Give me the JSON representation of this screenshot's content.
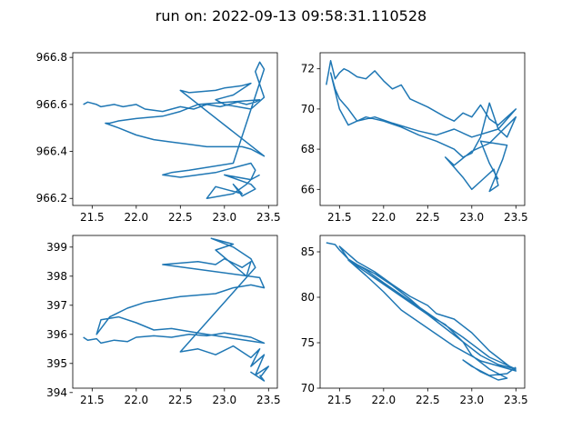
{
  "figure": {
    "title": "run on: 2022-09-13 09:58:31.110528"
  },
  "chart_data": [
    {
      "type": "line",
      "title": "",
      "xlabel": "",
      "ylabel": "",
      "xlim": [
        21.28,
        23.6
      ],
      "ylim": [
        966.17,
        966.82
      ],
      "xticks": [
        "21.5",
        "22.0",
        "22.5",
        "23.0",
        "23.5"
      ],
      "yticks": [
        "966.2",
        "966.4",
        "966.6",
        "966.8"
      ],
      "grid": false,
      "color": "#1f77b4",
      "series": [
        {
          "x": [
            21.4,
            21.45,
            21.55,
            21.6,
            21.75,
            21.85,
            22.0,
            22.1,
            22.3,
            22.5,
            22.65,
            22.8,
            22.95,
            23.05,
            23.15,
            23.25,
            23.35,
            23.4,
            22.7,
            22.5,
            22.3,
            22.0,
            21.8,
            21.7,
            21.65,
            21.8,
            22.0,
            22.2,
            22.4,
            22.6,
            22.8,
            23.0,
            23.2,
            23.3,
            23.4,
            23.45,
            22.5,
            22.6,
            22.9,
            23.0,
            23.2,
            23.3,
            23.1,
            22.9,
            23.0,
            23.3,
            23.45,
            23.35,
            23.4,
            23.45,
            23.1,
            22.6,
            22.4,
            22.3,
            22.5,
            22.7,
            22.9,
            23.1,
            23.3,
            23.35,
            23.3,
            23.0,
            23.3,
            23.35,
            23.2,
            23.1,
            23.2,
            22.9,
            22.8,
            23.1,
            23.25,
            23.3,
            23.4
          ],
          "y": [
            966.6,
            966.61,
            966.6,
            966.59,
            966.6,
            966.59,
            966.6,
            966.58,
            966.57,
            966.59,
            966.58,
            966.6,
            966.59,
            966.6,
            966.61,
            966.6,
            966.61,
            966.62,
            966.6,
            966.57,
            966.55,
            966.54,
            966.53,
            966.52,
            966.52,
            966.5,
            966.47,
            966.45,
            966.44,
            966.43,
            966.42,
            966.42,
            966.42,
            966.41,
            966.39,
            966.38,
            966.66,
            966.65,
            966.66,
            966.67,
            966.68,
            966.69,
            966.64,
            966.62,
            966.6,
            966.58,
            966.63,
            966.74,
            966.78,
            966.75,
            966.35,
            966.32,
            966.31,
            966.3,
            966.29,
            966.3,
            966.31,
            966.33,
            966.35,
            966.32,
            966.28,
            966.3,
            966.26,
            966.24,
            966.21,
            966.26,
            966.22,
            966.25,
            966.2,
            966.22,
            966.26,
            966.28,
            966.3
          ]
        }
      ]
    },
    {
      "type": "line",
      "title": "",
      "xlabel": "",
      "ylabel": "",
      "xlim": [
        21.28,
        23.6
      ],
      "ylim": [
        65.2,
        72.8
      ],
      "xticks": [
        "21.5",
        "22.0",
        "22.5",
        "23.0",
        "23.5"
      ],
      "yticks": [
        "66",
        "68",
        "70",
        "72"
      ],
      "grid": false,
      "color": "#1f77b4",
      "series": [
        {
          "x": [
            21.35,
            21.4,
            21.45,
            21.5,
            21.55,
            21.6,
            21.7,
            21.8,
            21.9,
            22.0,
            22.1,
            22.2,
            22.3,
            22.5,
            22.7,
            22.8,
            22.9,
            23.0,
            23.1,
            23.2,
            23.3,
            23.4,
            23.5,
            23.3,
            23.0,
            22.8,
            22.6,
            22.4,
            22.1,
            21.9,
            21.7,
            21.6,
            21.5,
            21.45,
            21.4,
            21.5,
            21.6,
            21.8,
            22.0,
            22.2,
            22.4,
            22.6,
            22.8,
            22.9,
            23.0,
            23.1,
            23.2,
            23.3,
            23.4,
            23.5,
            23.2,
            23.0,
            22.8,
            22.7,
            22.9,
            23.0,
            23.1,
            23.25,
            23.3,
            23.2,
            23.35,
            23.4,
            23.1,
            23.2,
            23.3
          ],
          "y": [
            71.2,
            72.4,
            71.5,
            71.8,
            72.0,
            71.9,
            71.6,
            71.5,
            71.9,
            71.4,
            71.0,
            71.2,
            70.5,
            70.1,
            69.6,
            69.4,
            69.8,
            69.6,
            70.2,
            69.5,
            69.2,
            69.6,
            70.0,
            69.0,
            68.6,
            69.0,
            68.7,
            68.9,
            69.3,
            69.6,
            69.4,
            70.0,
            70.5,
            71.0,
            71.8,
            70.0,
            69.2,
            69.6,
            69.4,
            69.1,
            68.7,
            68.4,
            68.0,
            67.6,
            67.8,
            68.6,
            70.3,
            69.0,
            68.6,
            69.6,
            68.3,
            67.9,
            67.2,
            67.6,
            66.6,
            66.0,
            66.4,
            67.0,
            66.2,
            65.9,
            67.5,
            68.2,
            68.4,
            67.3,
            66.5
          ]
        }
      ]
    },
    {
      "type": "line",
      "title": "",
      "xlabel": "",
      "ylabel": "",
      "xlim": [
        21.28,
        23.6
      ],
      "ylim": [
        394.15,
        399.4
      ],
      "xticks": [
        "21.5",
        "22.0",
        "22.5",
        "23.0",
        "23.5"
      ],
      "yticks": [
        "394",
        "395",
        "396",
        "397",
        "398",
        "399"
      ],
      "grid": false,
      "color": "#1f77b4",
      "series": [
        {
          "x": [
            21.4,
            21.45,
            21.55,
            21.6,
            21.75,
            21.9,
            22.0,
            22.2,
            22.4,
            22.6,
            22.8,
            23.0,
            23.1,
            23.3,
            23.45,
            22.8,
            22.6,
            22.4,
            22.2,
            22.0,
            21.8,
            21.6,
            21.55,
            21.7,
            21.9,
            22.1,
            22.3,
            22.5,
            22.7,
            22.9,
            23.1,
            23.3,
            23.45,
            23.4,
            22.3,
            22.5,
            22.7,
            22.9,
            23.0,
            23.2,
            23.3,
            23.25,
            22.9,
            23.1,
            22.85,
            23.1,
            23.3,
            23.35,
            22.5,
            22.7,
            22.9,
            23.1,
            23.3,
            23.4,
            23.3,
            23.45,
            23.35,
            23.5,
            23.4,
            23.3,
            23.45,
            23.4
          ],
          "y": [
            395.9,
            395.8,
            395.85,
            395.7,
            395.8,
            395.75,
            395.9,
            395.95,
            395.9,
            396.0,
            395.95,
            396.05,
            396.0,
            395.9,
            395.7,
            396.0,
            396.1,
            396.2,
            396.15,
            396.4,
            396.6,
            396.5,
            396.0,
            396.6,
            396.9,
            397.1,
            397.2,
            397.3,
            397.35,
            397.4,
            397.6,
            397.7,
            397.6,
            397.95,
            398.4,
            398.45,
            398.5,
            398.4,
            398.6,
            398.3,
            398.5,
            398.0,
            398.9,
            399.1,
            399.3,
            399.0,
            398.6,
            398.3,
            395.4,
            395.5,
            395.3,
            395.6,
            395.2,
            395.5,
            394.9,
            395.3,
            394.6,
            394.9,
            394.5,
            394.7,
            394.4,
            394.6
          ]
        }
      ]
    },
    {
      "type": "line",
      "title": "",
      "xlabel": "",
      "ylabel": "",
      "xlim": [
        21.28,
        23.6
      ],
      "ylim": [
        70.0,
        86.8
      ],
      "xticks": [
        "21.5",
        "22.0",
        "22.5",
        "23.0",
        "23.5"
      ],
      "yticks": [
        "70",
        "75",
        "80",
        "85"
      ],
      "grid": false,
      "color": "#1f77b4",
      "series": [
        {
          "x": [
            21.35,
            21.45,
            21.5,
            21.6,
            21.7,
            21.9,
            22.1,
            22.3,
            22.5,
            22.7,
            22.9,
            23.1,
            23.3,
            23.5,
            23.2,
            22.9,
            22.6,
            22.3,
            22.0,
            21.8,
            21.6,
            21.5,
            21.7,
            21.9,
            22.1,
            22.3,
            22.5,
            22.6,
            22.8,
            23.0,
            23.2,
            23.4,
            23.5,
            23.1,
            22.8,
            22.5,
            22.2,
            22.0,
            21.8,
            21.6,
            21.9,
            22.2,
            22.5,
            22.7,
            22.9,
            23.0,
            23.2,
            23.3,
            23.4,
            23.3,
            23.1,
            22.9,
            23.0,
            23.2,
            23.4,
            23.5
          ],
          "y": [
            86.0,
            85.8,
            85.2,
            84.2,
            83.6,
            82.6,
            81.3,
            79.8,
            78.1,
            76.6,
            75.1,
            73.6,
            72.6,
            72.1,
            73.4,
            75.6,
            77.6,
            79.6,
            81.6,
            83.0,
            84.2,
            85.6,
            83.9,
            82.8,
            81.4,
            80.1,
            79.1,
            78.2,
            77.6,
            76.1,
            74.1,
            72.6,
            71.9,
            73.0,
            74.6,
            76.6,
            78.6,
            80.6,
            82.4,
            84.1,
            82.1,
            80.1,
            78.1,
            77.0,
            75.1,
            73.6,
            72.1,
            71.6,
            71.1,
            70.9,
            71.8,
            73.1,
            72.4,
            71.4,
            71.6,
            72.3
          ]
        }
      ]
    }
  ]
}
